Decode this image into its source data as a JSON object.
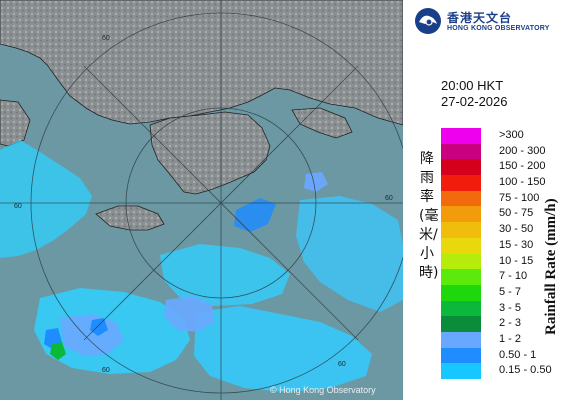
{
  "header": {
    "logo_zh": "香港天文台",
    "logo_en": "HONG KONG OBSERVATORY",
    "time": "20:00 HKT",
    "date": "27-02-2026"
  },
  "legend": {
    "title_zh": "降雨率(毫米/小時)",
    "title_en": "Rainfall Rate (mm/h)",
    "items": [
      {
        "label": ">300",
        "color": "#ee00ee"
      },
      {
        "label": "200 - 300",
        "color": "#c9007f"
      },
      {
        "label": "150 - 200",
        "color": "#d4001c"
      },
      {
        "label": "100 - 150",
        "color": "#f11c0c"
      },
      {
        "label": "75 - 100",
        "color": "#f26a0c"
      },
      {
        "label": "50 - 75",
        "color": "#f29c0c"
      },
      {
        "label": "30 - 50",
        "color": "#f0bd0c"
      },
      {
        "label": "15 - 30",
        "color": "#e8d80c"
      },
      {
        "label": "10 - 15",
        "color": "#b6ec0c"
      },
      {
        "label": "7 - 10",
        "color": "#5bea0c"
      },
      {
        "label": "5 - 7",
        "color": "#1ed80c"
      },
      {
        "label": "3 - 5",
        "color": "#0cb83a"
      },
      {
        "label": "2 - 3",
        "color": "#0a8c3a"
      },
      {
        "label": "1 - 2",
        "color": "#6aa8ff"
      },
      {
        "label": "0.50 - 1",
        "color": "#1f8cff"
      },
      {
        "label": "0.15 - 0.50",
        "color": "#16c8ff"
      }
    ]
  },
  "map": {
    "ring_labels": [
      "60",
      "60",
      "60",
      "60",
      "60"
    ],
    "copyright": "© Hong Kong Observatory"
  }
}
